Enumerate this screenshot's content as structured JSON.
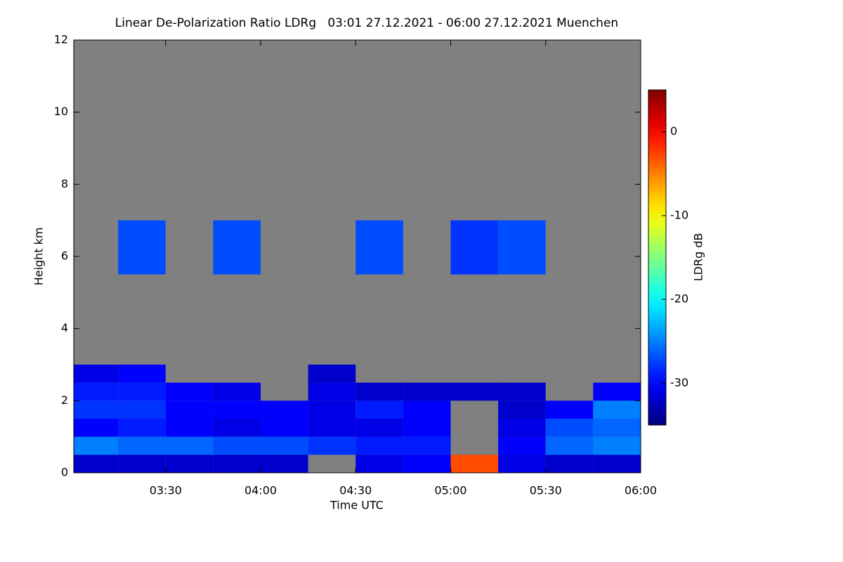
{
  "chart_data": {
    "type": "heatmap",
    "title": "Linear De-Polarization Ratio LDRg   03:01 27.12.2021 - 06:00 27.12.2021 Muenchen",
    "x_label": "Time UTC",
    "y_label": "Height km",
    "xlim": [
      181,
      360
    ],
    "xticks": [
      {
        "value": 210,
        "label": "03:30"
      },
      {
        "value": 240,
        "label": "04:00"
      },
      {
        "value": 270,
        "label": "04:30"
      },
      {
        "value": 300,
        "label": "05:00"
      },
      {
        "value": 330,
        "label": "05:30"
      },
      {
        "value": 360,
        "label": "06:00"
      }
    ],
    "ylim": [
      0,
      12
    ],
    "yticks": [
      0,
      2,
      4,
      6,
      8,
      10,
      12
    ],
    "x_edges": [
      181,
      195,
      210,
      225,
      240,
      255,
      270,
      285,
      300,
      315,
      330,
      345,
      360
    ],
    "y_edges": [
      0,
      0.5,
      1,
      1.5,
      2,
      2.5,
      3,
      5.5,
      7,
      12
    ],
    "z": [
      [
        -32,
        -32,
        -32,
        -32,
        -32,
        null,
        -31,
        -30,
        -3,
        -31,
        -32,
        -32
      ],
      [
        -25,
        -26,
        -26,
        -27,
        -27,
        -28,
        -29,
        -29,
        null,
        -30,
        -26,
        -25
      ],
      [
        -30,
        -29,
        -30,
        -31,
        -30,
        -31,
        -31,
        -30,
        null,
        -31,
        -27,
        -26
      ],
      [
        -28,
        -28,
        -30,
        -30,
        -30,
        -31,
        -29,
        -30,
        null,
        -32,
        -30,
        -25
      ],
      [
        -29,
        -29,
        -30,
        -31,
        null,
        -31,
        -32,
        -32,
        -32,
        -32,
        null,
        -30
      ],
      [
        -31,
        -30,
        null,
        null,
        null,
        -32,
        null,
        null,
        null,
        null,
        null,
        null
      ],
      [
        null,
        null,
        null,
        null,
        null,
        null,
        null,
        null,
        null,
        null,
        null,
        null
      ],
      [
        null,
        -27,
        null,
        -27,
        null,
        null,
        -27,
        null,
        -28,
        -27,
        null,
        null
      ],
      [
        null,
        null,
        null,
        null,
        null,
        null,
        null,
        null,
        null,
        null,
        null,
        null
      ]
    ],
    "background": "#808080",
    "colormap": "jet",
    "colorbar": {
      "label": "LDRg dB",
      "lim": [
        -35,
        5
      ],
      "ticks": [
        0,
        -10,
        -20,
        -30
      ]
    }
  }
}
